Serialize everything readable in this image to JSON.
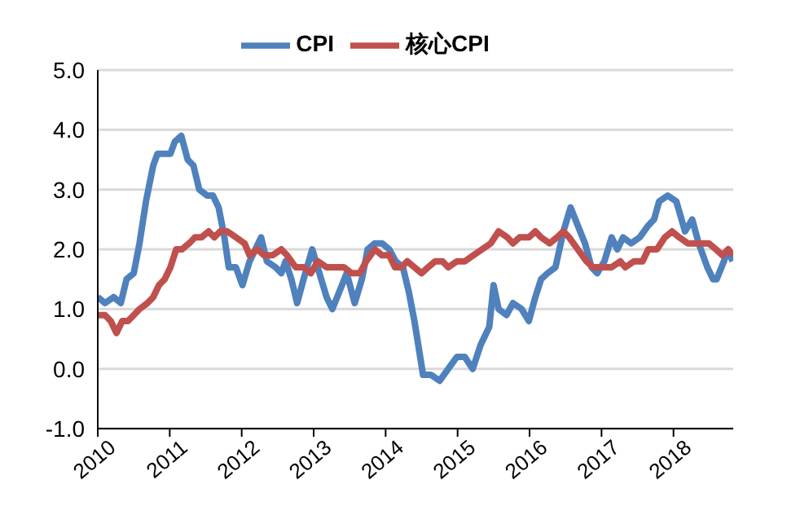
{
  "chart_data": {
    "type": "line",
    "legend": "top",
    "grid": "y",
    "xlim": [
      2010,
      2018.83
    ],
    "xticks": [
      2010,
      2011,
      2012,
      2013,
      2014,
      2015,
      2016,
      2017,
      2018
    ],
    "ylim": [
      -1,
      5
    ],
    "yticks": [
      {
        "value": -1,
        "label": "-1.0"
      },
      {
        "value": 0,
        "label": "0.0"
      },
      {
        "value": 1,
        "label": "1.0"
      },
      {
        "value": 2,
        "label": "2.0"
      },
      {
        "value": 3,
        "label": "3.0"
      },
      {
        "value": 4,
        "label": "4.0"
      },
      {
        "value": 5,
        "label": "5.0"
      }
    ],
    "marker": "none",
    "line_style": "solid",
    "series": [
      {
        "name": "CPI",
        "color": "#4f81bd",
        "x": [
          2010.0,
          2010.1,
          2010.22,
          2010.32,
          2010.4,
          2010.5,
          2010.58,
          2010.67,
          2010.77,
          2010.83,
          2010.93,
          2011.01,
          2011.07,
          2011.16,
          2011.25,
          2011.33,
          2011.41,
          2011.52,
          2011.6,
          2011.68,
          2011.76,
          2011.82,
          2011.92,
          2012.01,
          2012.11,
          2012.19,
          2012.27,
          2012.35,
          2012.47,
          2012.55,
          2012.61,
          2012.69,
          2012.77,
          2012.86,
          2012.98,
          2013.08,
          2013.18,
          2013.26,
          2013.36,
          2013.46,
          2013.57,
          2013.67,
          2013.75,
          2013.85,
          2013.95,
          2014.05,
          2014.14,
          2014.24,
          2014.32,
          2014.4,
          2014.52,
          2014.63,
          2014.75,
          2014.87,
          2014.99,
          2015.1,
          2015.21,
          2015.32,
          2015.44,
          2015.5,
          2015.57,
          2015.68,
          2015.77,
          2015.89,
          2015.99,
          2016.08,
          2016.16,
          2016.25,
          2016.36,
          2016.47,
          2016.57,
          2016.67,
          2016.77,
          2016.86,
          2016.94,
          2017.04,
          2017.14,
          2017.22,
          2017.3,
          2017.41,
          2017.53,
          2017.65,
          2017.73,
          2017.8,
          2017.92,
          2018.04,
          2018.16,
          2018.26,
          2018.35,
          2018.47,
          2018.55,
          2018.6,
          2018.7,
          2018.76,
          2018.82
        ],
        "values": [
          1.2,
          1.1,
          1.2,
          1.1,
          1.5,
          1.6,
          2.1,
          2.8,
          3.4,
          3.6,
          3.6,
          3.6,
          3.8,
          3.9,
          3.5,
          3.4,
          3.0,
          2.9,
          2.9,
          2.7,
          2.2,
          1.7,
          1.7,
          1.4,
          1.8,
          2.0,
          2.2,
          1.8,
          1.7,
          1.6,
          1.8,
          1.5,
          1.1,
          1.5,
          2.0,
          1.6,
          1.2,
          1.0,
          1.3,
          1.6,
          1.1,
          1.5,
          2.0,
          2.1,
          2.1,
          2.0,
          1.8,
          1.7,
          1.3,
          0.8,
          -0.1,
          -0.1,
          -0.2,
          0.0,
          0.2,
          0.2,
          0.0,
          0.4,
          0.7,
          1.4,
          1.0,
          0.9,
          1.1,
          1.0,
          0.8,
          1.2,
          1.5,
          1.6,
          1.7,
          2.3,
          2.7,
          2.4,
          2.1,
          1.7,
          1.6,
          1.8,
          2.2,
          2.0,
          2.2,
          2.1,
          2.2,
          2.4,
          2.5,
          2.8,
          2.9,
          2.8,
          2.3,
          2.5,
          2.1,
          1.7,
          1.5,
          1.5,
          1.8,
          2.0,
          1.8
        ]
      },
      {
        "name": "核心CPI",
        "color": "#c0504d",
        "x": [
          2010.0,
          2010.1,
          2010.18,
          2010.26,
          2010.34,
          2010.42,
          2010.5,
          2010.58,
          2010.69,
          2010.77,
          2010.85,
          2010.93,
          2011.01,
          2011.09,
          2011.17,
          2011.27,
          2011.35,
          2011.44,
          2011.54,
          2011.62,
          2011.7,
          2011.8,
          2011.92,
          2012.04,
          2012.11,
          2012.22,
          2012.31,
          2012.43,
          2012.55,
          2012.63,
          2012.75,
          2012.86,
          2012.96,
          2013.06,
          2013.18,
          2013.3,
          2013.42,
          2013.53,
          2013.64,
          2013.73,
          2013.85,
          2013.95,
          2014.05,
          2014.13,
          2014.22,
          2014.3,
          2014.4,
          2014.5,
          2014.59,
          2014.69,
          2014.79,
          2014.87,
          2014.99,
          2015.1,
          2015.22,
          2015.34,
          2015.46,
          2015.57,
          2015.69,
          2015.77,
          2015.86,
          2015.99,
          2016.08,
          2016.16,
          2016.28,
          2016.38,
          2016.47,
          2016.55,
          2016.67,
          2016.79,
          2016.88,
          2017.02,
          2017.14,
          2017.26,
          2017.33,
          2017.45,
          2017.57,
          2017.65,
          2017.77,
          2017.88,
          2017.98,
          2018.08,
          2018.2,
          2018.29,
          2018.39,
          2018.49,
          2018.59,
          2018.68,
          2018.76,
          2018.82
        ],
        "values": [
          0.9,
          0.9,
          0.8,
          0.6,
          0.8,
          0.8,
          0.9,
          1.0,
          1.1,
          1.2,
          1.4,
          1.5,
          1.7,
          2.0,
          2.0,
          2.1,
          2.2,
          2.2,
          2.3,
          2.2,
          2.3,
          2.3,
          2.2,
          2.1,
          1.9,
          2.0,
          1.9,
          1.9,
          2.0,
          1.9,
          1.7,
          1.7,
          1.6,
          1.8,
          1.7,
          1.7,
          1.7,
          1.6,
          1.6,
          1.8,
          2.0,
          1.9,
          1.9,
          1.7,
          1.7,
          1.8,
          1.7,
          1.6,
          1.7,
          1.8,
          1.8,
          1.7,
          1.8,
          1.8,
          1.9,
          2.0,
          2.1,
          2.3,
          2.2,
          2.1,
          2.2,
          2.2,
          2.3,
          2.2,
          2.1,
          2.2,
          2.3,
          2.2,
          2.0,
          1.8,
          1.7,
          1.7,
          1.7,
          1.8,
          1.7,
          1.8,
          1.8,
          2.0,
          2.0,
          2.2,
          2.3,
          2.2,
          2.1,
          2.1,
          2.1,
          2.1,
          2.0,
          1.9,
          2.0,
          1.9
        ]
      }
    ]
  }
}
